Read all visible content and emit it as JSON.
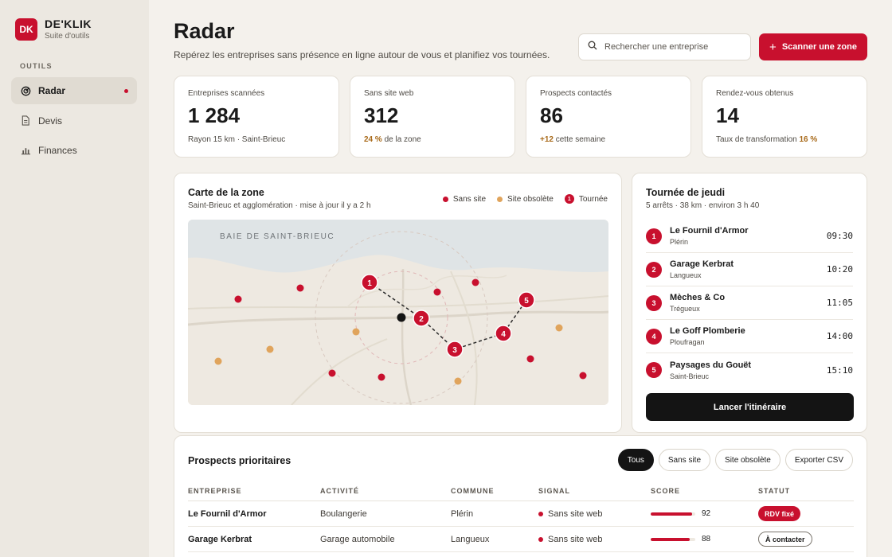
{
  "brand": {
    "logo": "DK",
    "name": "DE'KLIK",
    "subtitle": "Suite d'outils"
  },
  "sidebar": {
    "section": "OUTILS",
    "items": [
      {
        "label": "Radar",
        "icon": "radar-icon",
        "active": true
      },
      {
        "label": "Devis",
        "icon": "document-icon",
        "active": false
      },
      {
        "label": "Finances",
        "icon": "bar-chart-icon",
        "active": false
      }
    ]
  },
  "header": {
    "title": "Radar",
    "subtitle": "Repérez les entreprises sans présence en ligne autour de vous et planifiez vos tournées.",
    "search_placeholder": "Rechercher une entreprise",
    "scan_label": "Scanner une zone"
  },
  "stats": [
    {
      "label": "Entreprises scannées",
      "value": "1 284",
      "note": "Rayon 15 km · Saint-Brieuc"
    },
    {
      "label": "Sans site web",
      "value": "312",
      "note_hl": "24 %",
      "note": "de la zone"
    },
    {
      "label": "Prospects contactés",
      "value": "86",
      "note_hl": "+12",
      "note": "cette semaine"
    },
    {
      "label": "Rendez-vous obtenus",
      "value": "14",
      "note": "Taux de transformation",
      "note_hl": "16 %"
    }
  ],
  "map": {
    "title": "Carte de la zone",
    "subtitle": "Saint-Brieuc et agglomération · mise à jour il y a 2 h",
    "legend": {
      "no_site": "Sans site",
      "obsolete": "Site obsolète",
      "route": "Tournée",
      "route_num": "1"
    },
    "sea_label": "BAIE DE SAINT-BRIEUC",
    "colors": {
      "no_site": "#c8102e",
      "obsolete": "#e0a45c",
      "route": "#c8102e",
      "sea": "#dfe4e6",
      "land": "#eee9e1"
    }
  },
  "route": {
    "title": "Tournée de jeudi",
    "subtitle": "5 arrêts · 38 km · environ 3 h 40",
    "stops": [
      {
        "num": "1",
        "name": "Le Fournil d'Armor",
        "town": "Plérin",
        "time": "09:30"
      },
      {
        "num": "2",
        "name": "Garage Kerbrat",
        "town": "Langueux",
        "time": "10:20"
      },
      {
        "num": "3",
        "name": "Mèches & Co",
        "town": "Trégueux",
        "time": "11:05"
      },
      {
        "num": "4",
        "name": "Le Goff Plomberie",
        "town": "Ploufragan",
        "time": "14:00"
      },
      {
        "num": "5",
        "name": "Paysages du Gouët",
        "town": "Saint-Brieuc",
        "time": "15:10"
      }
    ],
    "launch_label": "Lancer l'itinéraire"
  },
  "prospects": {
    "title": "Prospects prioritaires",
    "filters": [
      "Tous",
      "Sans site",
      "Site obsolète",
      "Exporter CSV"
    ],
    "active_filter": 0,
    "columns": [
      "ENTREPRISE",
      "ACTIVITÉ",
      "COMMUNE",
      "SIGNAL",
      "SCORE",
      "STATUT"
    ],
    "rows": [
      {
        "company": "Le Fournil d'Armor",
        "activity": "Boulangerie",
        "town": "Plérin",
        "signal": "Sans site web",
        "score": 92,
        "status": "RDV fixé",
        "status_type": "fixe"
      },
      {
        "company": "Garage Kerbrat",
        "activity": "Garage automobile",
        "town": "Langueux",
        "signal": "Sans site web",
        "score": 88,
        "status": "À contacter",
        "status_type": "contact"
      }
    ]
  }
}
